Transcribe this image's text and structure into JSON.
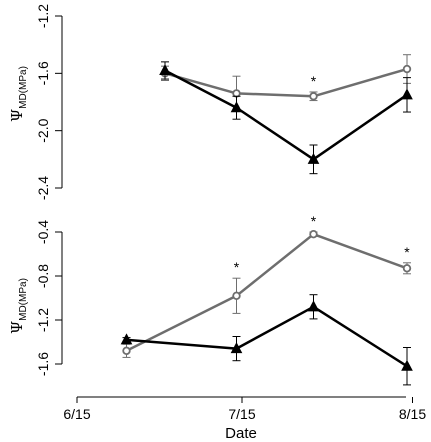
{
  "chart_data": [
    {
      "type": "line",
      "panel": "top",
      "ylabel_main": "Ψ",
      "ylabel_sub": "MD(MPa)",
      "yticks": [
        "-1.2",
        "-1.6",
        "-2.0",
        "-2.4"
      ],
      "ylim": [
        -2.4,
        -1.2
      ],
      "x": [
        "2011-07-01",
        "2011-07-14",
        "2011-07-28",
        "2011-08-14"
      ],
      "series": [
        {
          "marker": "circle",
          "color": "#6e6e6e",
          "values": [
            -1.6,
            -1.74,
            -1.76,
            -1.57
          ],
          "err": [
            0.05,
            0.12,
            0.03,
            0.1
          ]
        },
        {
          "marker": "triangle",
          "color": "#000000",
          "values": [
            -1.58,
            -1.84,
            -2.2,
            -1.75
          ],
          "err": [
            0.06,
            0.08,
            0.1,
            0.12
          ]
        }
      ],
      "significance": [
        "",
        "",
        "*",
        ""
      ],
      "grid": false
    },
    {
      "type": "line",
      "panel": "bottom",
      "ylabel_main": "Ψ",
      "ylabel_sub": "MD(MPa)",
      "yticks": [
        "-0.4",
        "-0.8",
        "-1.2",
        "-1.6"
      ],
      "ylim": [
        -1.7,
        -0.35
      ],
      "x": [
        "2011-06-24",
        "2011-07-14",
        "2011-07-28",
        "2011-08-14"
      ],
      "series": [
        {
          "marker": "circle",
          "color": "#6e6e6e",
          "values": [
            -1.48,
            -0.98,
            -0.42,
            -0.73
          ],
          "err": [
            0.06,
            0.16,
            0.02,
            0.05
          ]
        },
        {
          "marker": "triangle",
          "color": "#000000",
          "values": [
            -1.38,
            -1.46,
            -1.08,
            -1.62
          ],
          "err": [
            0.02,
            0.11,
            0.11,
            0.17
          ]
        }
      ],
      "significance": [
        "",
        "*",
        "*",
        "*"
      ],
      "grid": false
    }
  ],
  "x_axis": {
    "label": "Date",
    "ticks": [
      "6/15",
      "7/15",
      "8/15"
    ],
    "tick_dates": [
      "2011-06-15",
      "2011-07-15",
      "2011-08-15"
    ]
  }
}
